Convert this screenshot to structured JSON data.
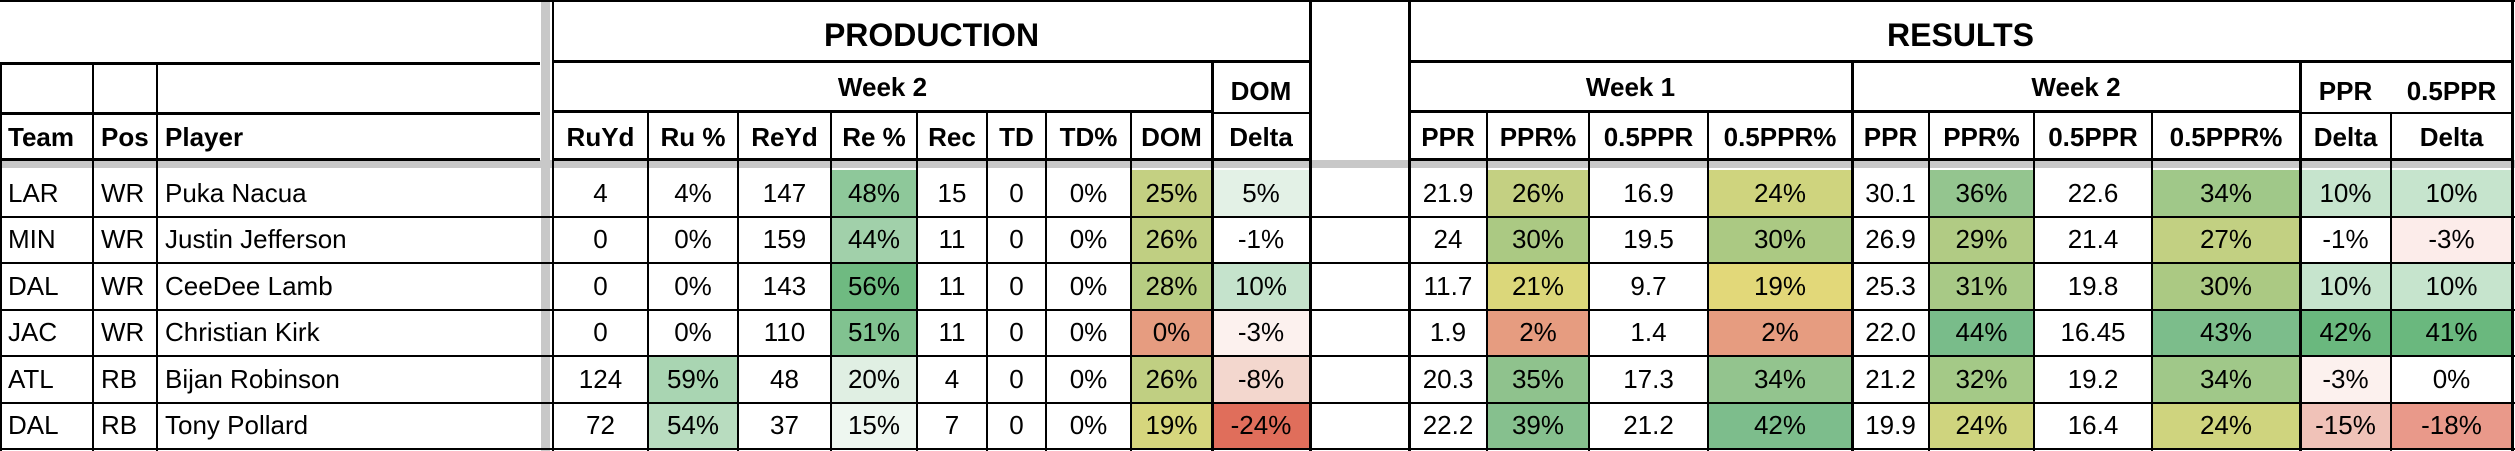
{
  "headers": {
    "production": "PRODUCTION",
    "results": "RESULTS",
    "week2": "Week 2",
    "week1": "Week 1",
    "dom": "DOM",
    "ppr": "PPR",
    "halfppr": "0.5PPR",
    "delta": "Delta"
  },
  "columns": {
    "team": "Team",
    "pos": "Pos",
    "player": "Player",
    "production": [
      "RuYd",
      "Ru %",
      "ReYd",
      "Re %",
      "Rec",
      "TD",
      "TD%",
      "DOM",
      "Delta"
    ],
    "week1": [
      "PPR",
      "PPR%",
      "0.5PPR",
      "0.5PPR%"
    ],
    "week2": [
      "PPR",
      "PPR%",
      "0.5PPR",
      "0.5PPR%"
    ],
    "deltas": [
      "Delta",
      "Delta"
    ]
  },
  "rows": [
    {
      "team": "LAR",
      "pos": "WR",
      "player": "Puka Nacua",
      "prod": [
        "4",
        "4%",
        "147",
        "48%",
        "15",
        "0",
        "0%",
        "25%",
        "5%"
      ],
      "w1": [
        "21.9",
        "26%",
        "16.9",
        "24%"
      ],
      "w2": [
        "30.1",
        "36%",
        "22.6",
        "34%"
      ],
      "d": [
        "10%",
        "10%"
      ]
    },
    {
      "team": "MIN",
      "pos": "WR",
      "player": "Justin Jefferson",
      "prod": [
        "0",
        "0%",
        "159",
        "44%",
        "11",
        "0",
        "0%",
        "26%",
        "-1%"
      ],
      "w1": [
        "24",
        "30%",
        "19.5",
        "30%"
      ],
      "w2": [
        "26.9",
        "29%",
        "21.4",
        "27%"
      ],
      "d": [
        "-1%",
        "-3%"
      ]
    },
    {
      "team": "DAL",
      "pos": "WR",
      "player": "CeeDee Lamb",
      "prod": [
        "0",
        "0%",
        "143",
        "56%",
        "11",
        "0",
        "0%",
        "28%",
        "10%"
      ],
      "w1": [
        "11.7",
        "21%",
        "9.7",
        "19%"
      ],
      "w2": [
        "25.3",
        "31%",
        "19.8",
        "30%"
      ],
      "d": [
        "10%",
        "10%"
      ]
    },
    {
      "team": "JAC",
      "pos": "WR",
      "player": "Christian Kirk",
      "prod": [
        "0",
        "0%",
        "110",
        "51%",
        "11",
        "0",
        "0%",
        "0%",
        "-3%"
      ],
      "w1": [
        "1.9",
        "2%",
        "1.4",
        "2%"
      ],
      "w2": [
        "22.0",
        "44%",
        "16.45",
        "43%"
      ],
      "d": [
        "42%",
        "41%"
      ]
    },
    {
      "team": "ATL",
      "pos": "RB",
      "player": "Bijan Robinson",
      "prod": [
        "124",
        "59%",
        "48",
        "20%",
        "4",
        "0",
        "0%",
        "26%",
        "-8%"
      ],
      "w1": [
        "20.3",
        "35%",
        "17.3",
        "34%"
      ],
      "w2": [
        "21.2",
        "32%",
        "19.2",
        "34%"
      ],
      "d": [
        "-3%",
        "0%"
      ]
    },
    {
      "team": "DAL",
      "pos": "RB",
      "player": "Tony Pollard",
      "prod": [
        "72",
        "54%",
        "37",
        "15%",
        "7",
        "0",
        "0%",
        "19%",
        "-24%"
      ],
      "w1": [
        "22.2",
        "39%",
        "21.2",
        "42%"
      ],
      "w2": [
        "19.9",
        "24%",
        "16.4",
        "24%"
      ],
      "d": [
        "-15%",
        "-18%"
      ]
    }
  ],
  "colors": {
    "prod": [
      [
        "#ffffff",
        "#ffffff",
        "#ffffff",
        "#8ec89a",
        "#ffffff",
        "#ffffff",
        "#ffffff",
        "#c4d082",
        "#e3f1e6"
      ],
      [
        "#ffffff",
        "#ffffff",
        "#ffffff",
        "#a1d0aa",
        "#ffffff",
        "#ffffff",
        "#ffffff",
        "#c0cf82",
        "#ffffff"
      ],
      [
        "#ffffff",
        "#ffffff",
        "#ffffff",
        "#6fba81",
        "#ffffff",
        "#ffffff",
        "#ffffff",
        "#b7cd82",
        "#c5e3cc"
      ],
      [
        "#ffffff",
        "#ffffff",
        "#ffffff",
        "#81c290",
        "#ffffff",
        "#ffffff",
        "#ffffff",
        "#e69c80",
        "#fcf1ee"
      ],
      [
        "#ffffff",
        "#a9d5b2",
        "#ffffff",
        "#e0efe3",
        "#ffffff",
        "#ffffff",
        "#ffffff",
        "#c0cf82",
        "#f3d7ce"
      ],
      [
        "#ffffff",
        "#b8dcbf",
        "#ffffff",
        "#eef7f0",
        "#ffffff",
        "#ffffff",
        "#ffffff",
        "#d6d67d",
        "#e06e5b"
      ]
    ],
    "w1": [
      [
        "#ffffff",
        "#c4d082",
        "#ffffff",
        "#cfd47e"
      ],
      [
        "#ffffff",
        "#abc983",
        "#ffffff",
        "#abc983"
      ],
      [
        "#ffffff",
        "#dbd77a",
        "#ffffff",
        "#e2d879"
      ],
      [
        "#ffffff",
        "#e69c80",
        "#ffffff",
        "#e69c80"
      ],
      [
        "#ffffff",
        "#8fc28d",
        "#ffffff",
        "#93c48e"
      ],
      [
        "#ffffff",
        "#86c08e",
        "#ffffff",
        "#7dbd8c"
      ]
    ],
    "w2": [
      [
        "#ffffff",
        "#94c58f",
        "#ffffff",
        "#a0c889"
      ],
      [
        "#ffffff",
        "#b1cb84",
        "#ffffff",
        "#c2d082"
      ],
      [
        "#ffffff",
        "#a8c986",
        "#ffffff",
        "#abc983"
      ],
      [
        "#ffffff",
        "#79bc8a",
        "#ffffff",
        "#7cbd8b"
      ],
      [
        "#ffffff",
        "#a4c987",
        "#ffffff",
        "#a0c889"
      ],
      [
        "#ffffff",
        "#cfd47e",
        "#ffffff",
        "#cfd47e"
      ]
    ],
    "d": [
      [
        "#c6e4cd",
        "#c6e4cd"
      ],
      [
        "#ffffff",
        "#fcecea"
      ],
      [
        "#c6e4cd",
        "#c6e4cd"
      ],
      [
        "#6ab87e",
        "#6ab87e"
      ],
      [
        "#fcf1ee",
        "#ffffff"
      ],
      [
        "#f0c2b8",
        "#e9998a"
      ]
    ]
  }
}
